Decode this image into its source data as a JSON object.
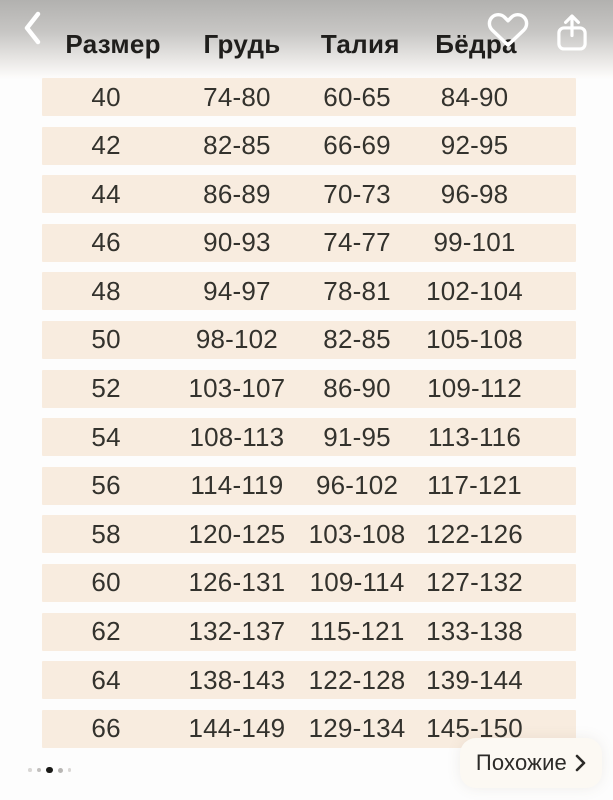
{
  "table": {
    "headers": [
      "Размер",
      "Грудь",
      "Талия",
      "Бёдра"
    ],
    "rows": [
      {
        "size": "40",
        "chest": "74-80",
        "waist": "60-65",
        "hips": "84-90"
      },
      {
        "size": "42",
        "chest": "82-85",
        "waist": "66-69",
        "hips": "92-95"
      },
      {
        "size": "44",
        "chest": "86-89",
        "waist": "70-73",
        "hips": "96-98"
      },
      {
        "size": "46",
        "chest": "90-93",
        "waist": "74-77",
        "hips": "99-101"
      },
      {
        "size": "48",
        "chest": "94-97",
        "waist": "78-81",
        "hips": "102-104"
      },
      {
        "size": "50",
        "chest": "98-102",
        "waist": "82-85",
        "hips": "105-108"
      },
      {
        "size": "52",
        "chest": "103-107",
        "waist": "86-90",
        "hips": "109-112"
      },
      {
        "size": "54",
        "chest": "108-113",
        "waist": "91-95",
        "hips": "113-116"
      },
      {
        "size": "56",
        "chest": "114-119",
        "waist": "96-102",
        "hips": "117-121"
      },
      {
        "size": "58",
        "chest": "120-125",
        "waist": "103-108",
        "hips": "122-126"
      },
      {
        "size": "60",
        "chest": "126-131",
        "waist": "109-114",
        "hips": "127-132"
      },
      {
        "size": "62",
        "chest": "132-137",
        "waist": "115-121",
        "hips": "133-138"
      },
      {
        "size": "64",
        "chest": "138-143",
        "waist": "122-128",
        "hips": "139-144"
      },
      {
        "size": "66",
        "chest": "144-149",
        "waist": "129-134",
        "hips": "145-150"
      }
    ]
  },
  "similar": {
    "label": "Похожие"
  },
  "pagination": {
    "count": 5,
    "active_index": 2
  },
  "icons": {
    "back": "chevron-left-icon",
    "favorite": "heart-icon",
    "share": "share-icon",
    "similar_arrow": "chevron-right-icon"
  },
  "colors": {
    "row_bg": "#f8ecdf",
    "page_bg": "#fdfdfd",
    "text": "#33322d",
    "header_text": "#1f1e1c",
    "top_gradient_start": "#b2b1af",
    "active_dot": "#191917",
    "pill_bg": "#fcf9f3"
  }
}
